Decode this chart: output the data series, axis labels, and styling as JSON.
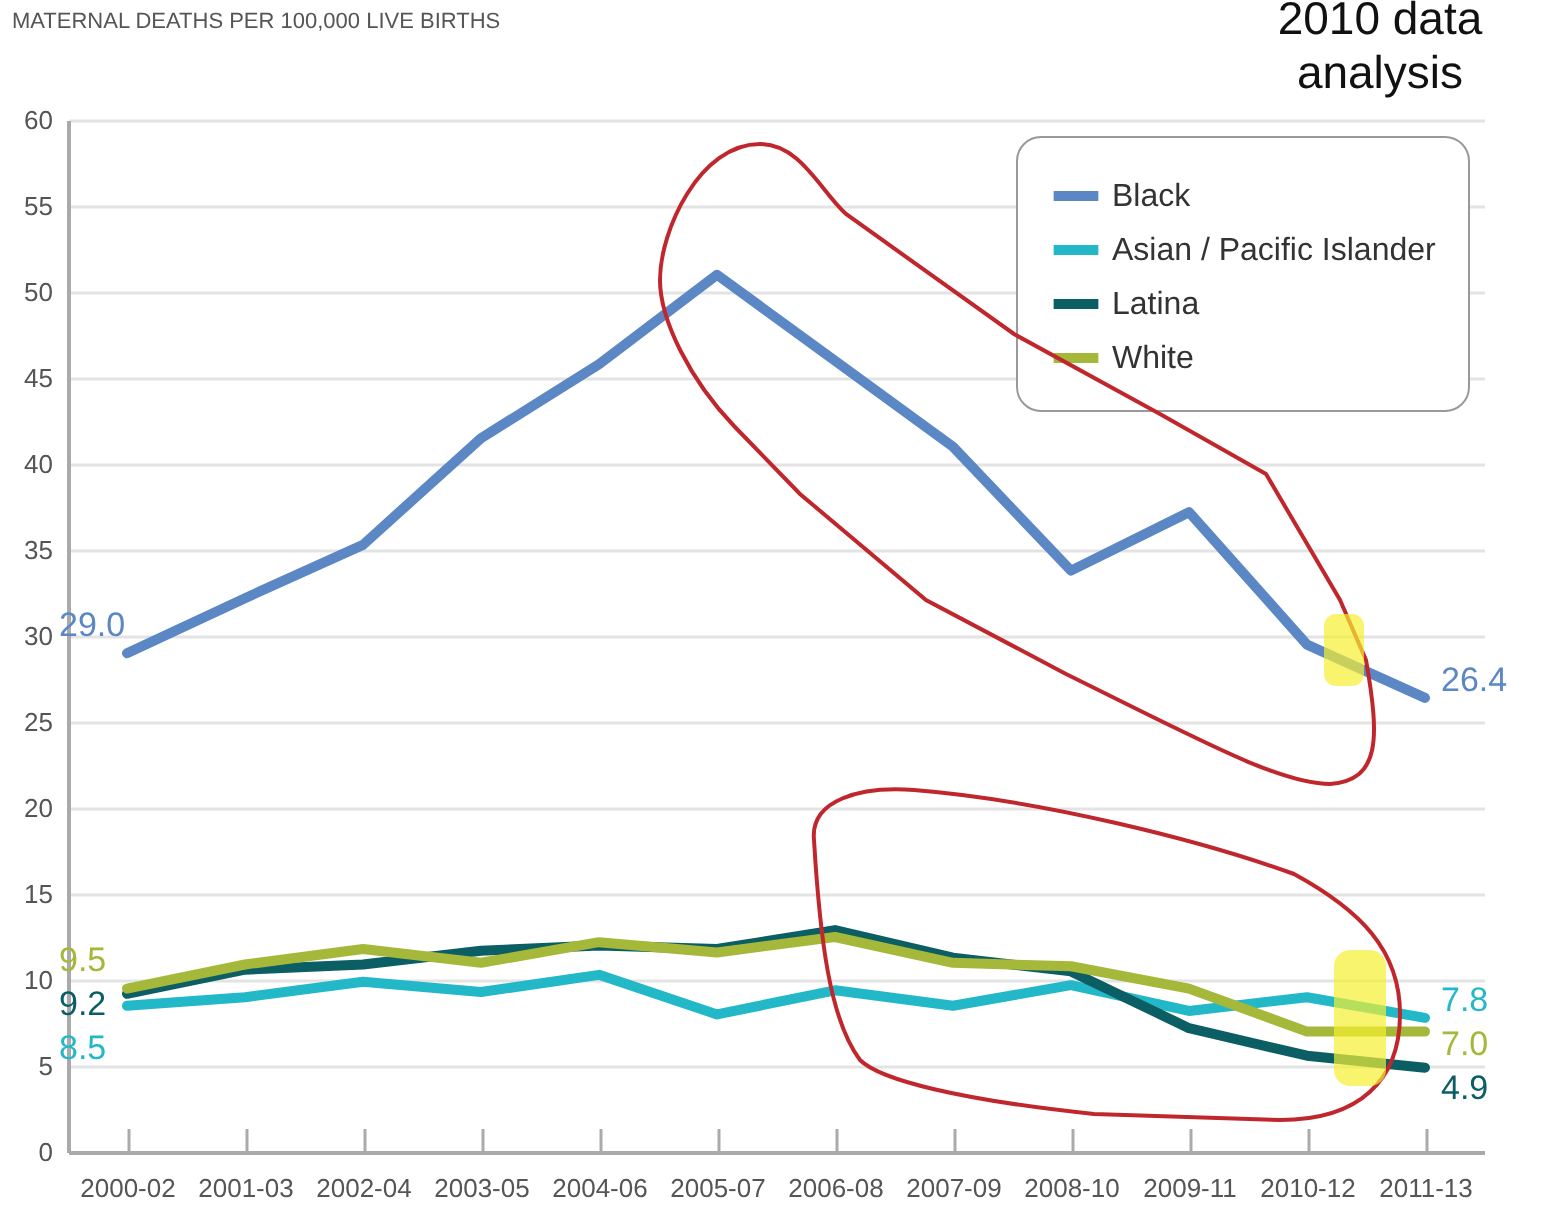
{
  "chart_data": {
    "type": "line",
    "title": "MATERNAL DEATHS PER 100,000 LIVE BIRTHS",
    "annotations": [
      "2010 data analysis"
    ],
    "categories": [
      "2000-02",
      "2001-03",
      "2002-04",
      "2003-05",
      "2004-06",
      "2005-07",
      "2006-08",
      "2007-09",
      "2008-10",
      "2009-11",
      "2010-12",
      "2011-13"
    ],
    "series": [
      {
        "name": "Black",
        "color": "#5b87c5",
        "values": [
          29.0,
          32.2,
          35.3,
          41.5,
          45.8,
          51.0,
          46.0,
          41.0,
          33.8,
          37.2,
          29.5,
          26.4
        ],
        "value_labels": [
          "29.0",
          null,
          null,
          null,
          null,
          null,
          null,
          null,
          null,
          null,
          null,
          "26.4"
        ]
      },
      {
        "name": "Asian / Pacific Islander",
        "color": "#22b8c8",
        "values": [
          8.5,
          9.0,
          9.9,
          9.3,
          10.3,
          8.0,
          9.4,
          8.5,
          9.7,
          8.2,
          9.0,
          7.8
        ],
        "value_labels": [
          "8.5",
          null,
          null,
          null,
          null,
          null,
          null,
          null,
          null,
          null,
          null,
          "7.8"
        ]
      },
      {
        "name": "Latina",
        "color": "#0b5e64",
        "values": [
          9.2,
          10.6,
          10.9,
          11.7,
          12.0,
          11.8,
          12.9,
          11.3,
          10.5,
          7.2,
          5.6,
          4.9
        ],
        "value_labels": [
          "9.2",
          null,
          null,
          null,
          null,
          null,
          null,
          null,
          null,
          null,
          null,
          "4.9"
        ]
      },
      {
        "name": "White",
        "color": "#a5b83a",
        "values": [
          9.5,
          10.9,
          11.8,
          11.0,
          12.2,
          11.6,
          12.5,
          11.0,
          10.8,
          9.5,
          7.0,
          7.0
        ],
        "value_labels": [
          "9.5",
          null,
          null,
          null,
          null,
          null,
          null,
          null,
          null,
          null,
          null,
          "7.0"
        ]
      }
    ],
    "ylim": [
      0,
      60
    ],
    "yticks": [
      0,
      5,
      10,
      15,
      20,
      25,
      30,
      35,
      40,
      45,
      50,
      55,
      60
    ],
    "grid": "y",
    "legend": "top right",
    "line_style": "solid"
  }
}
